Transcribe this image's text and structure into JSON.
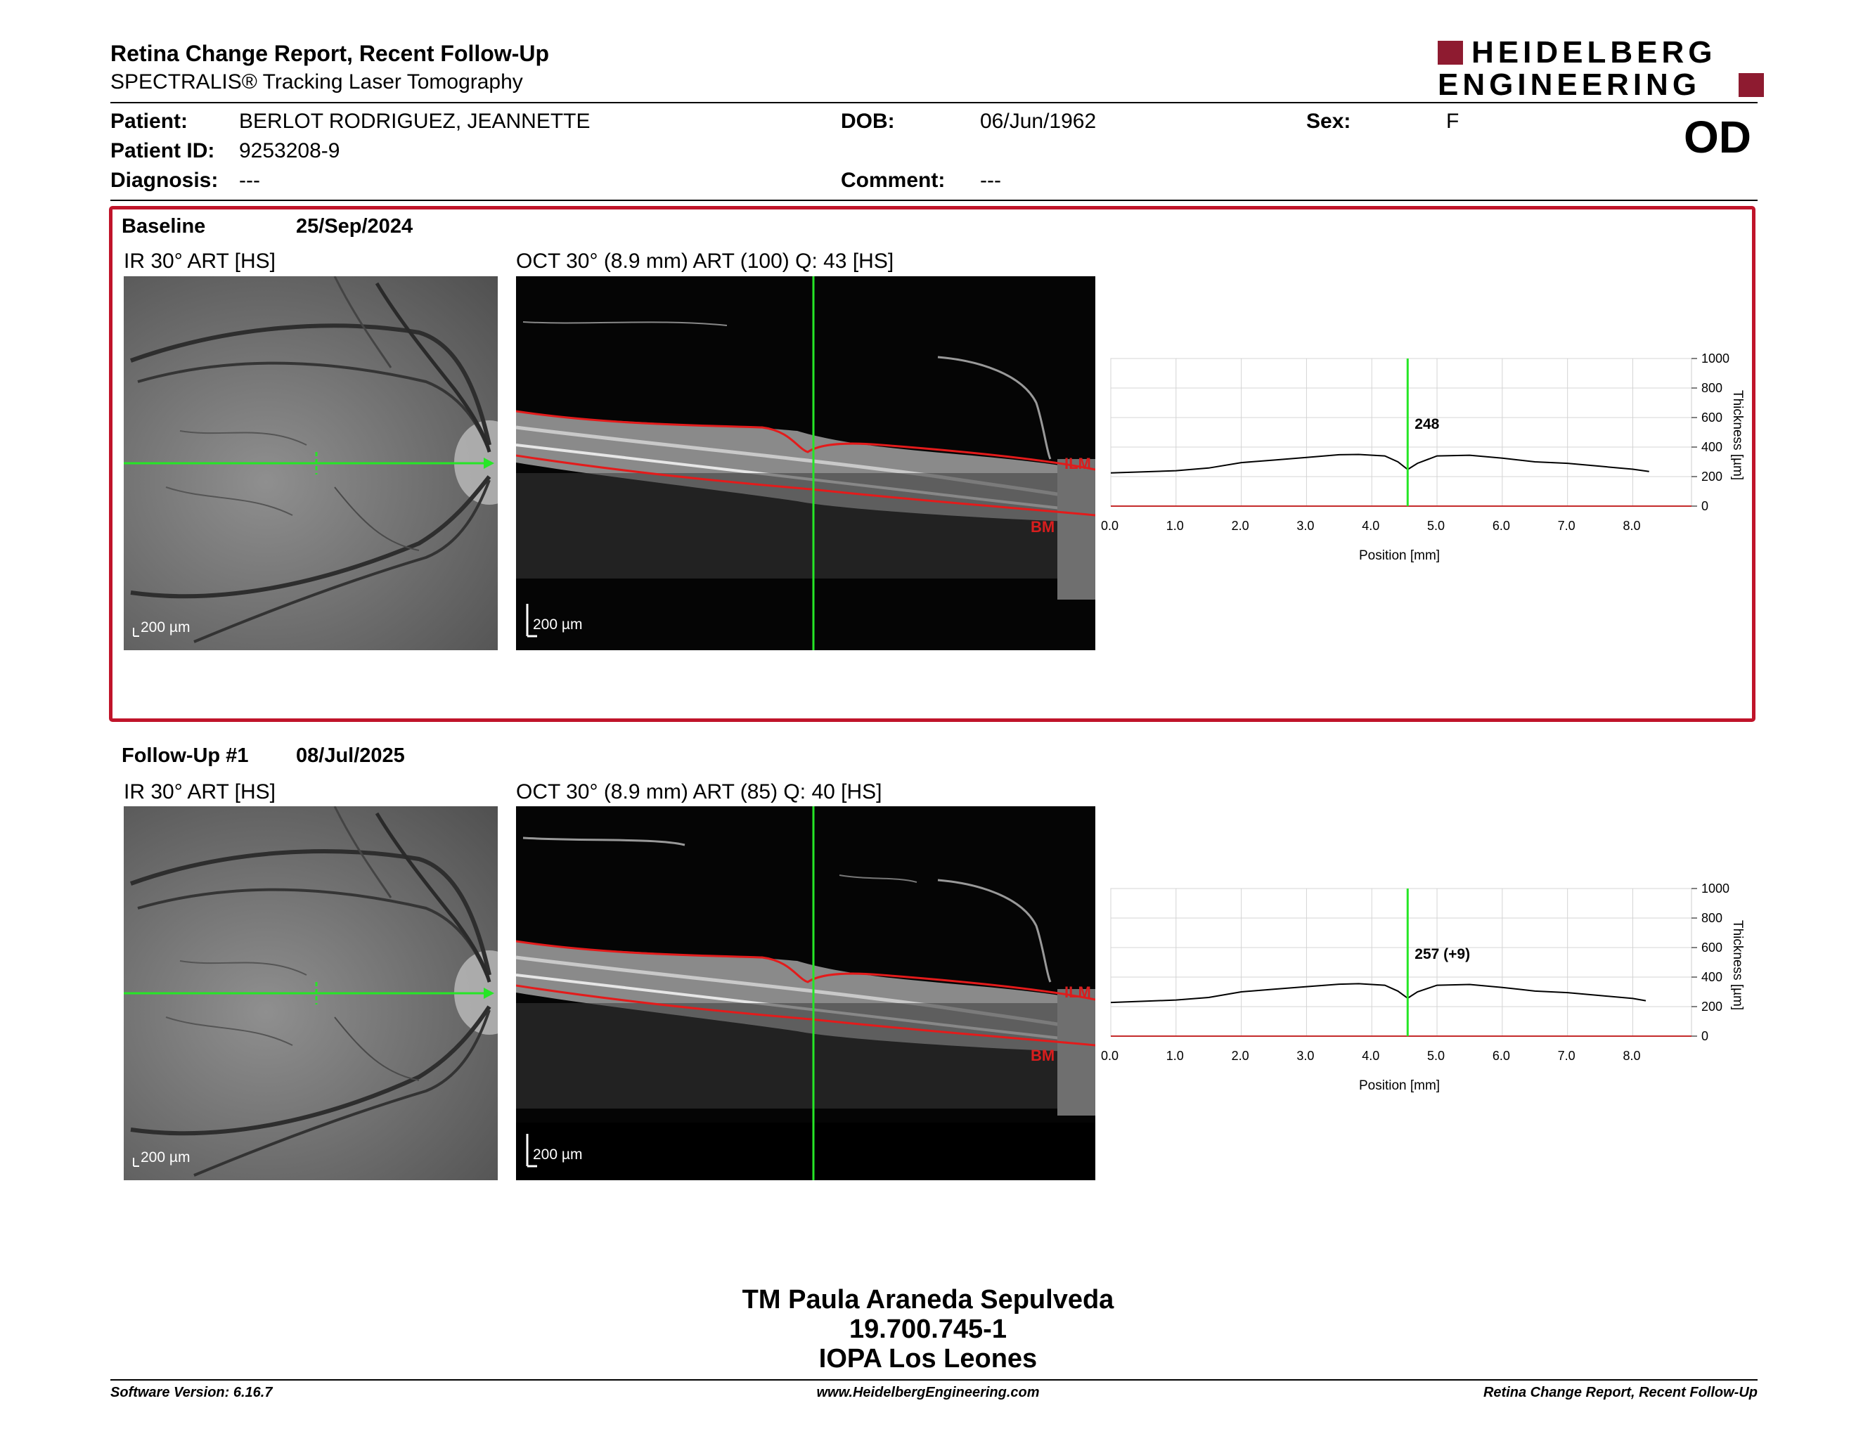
{
  "header": {
    "title": "Retina Change Report, Recent Follow-Up",
    "subtitle": "SPECTRALIS® Tracking Laser Tomography",
    "logo_line1": "HEIDELBERG",
    "logo_line2": "ENGINEERING",
    "logo_color": "#8e1b30"
  },
  "patient": {
    "patient_label": "Patient:",
    "patient_value": "BERLOT RODRIGUEZ, JEANNETTE",
    "id_label": "Patient ID:",
    "id_value": "9253208-9",
    "diagnosis_label": "Diagnosis:",
    "diagnosis_value": "---",
    "dob_label": "DOB:",
    "dob_value": "06/Jun/1962",
    "comment_label": "Comment:",
    "comment_value": "---",
    "sex_label": "Sex:",
    "sex_value": "F",
    "eye": "OD"
  },
  "sections": {
    "baseline": {
      "label": "Baseline",
      "date": "25/Sep/2024",
      "ir_caption": "IR 30° ART [HS]",
      "oct_caption": "OCT 30° (8.9 mm) ART (100) Q: 43 [HS]",
      "ir_scale": "200 µm",
      "oct_scale": "200 µm",
      "ilm_label": "ILM",
      "bm_label": "BM",
      "chart_value_label": "248"
    },
    "followup": {
      "label": "Follow-Up #1",
      "date": "08/Jul/2025",
      "ir_caption": "IR 30° ART [HS]",
      "oct_caption": "OCT 30° (8.9 mm) ART (85) Q: 40 [HS]",
      "ir_scale": "200 µm",
      "oct_scale": "200 µm",
      "ilm_label": "ILM",
      "bm_label": "BM",
      "chart_value_label": "257 (+9)"
    }
  },
  "chart_data": [
    {
      "type": "line",
      "xlabel": "Position [mm]",
      "ylabel": "Thickness [µm]",
      "xlim": [
        0,
        8.9
      ],
      "ylim": [
        0,
        1000
      ],
      "xticks": [
        "0.0",
        "1.0",
        "2.0",
        "3.0",
        "4.0",
        "5.0",
        "6.0",
        "7.0",
        "8.0"
      ],
      "yticks": [
        "0",
        "200",
        "400",
        "600",
        "800",
        "1000"
      ],
      "grid": true,
      "marker_x": 4.55,
      "annotation": "248",
      "x": [
        0.0,
        0.5,
        1.0,
        1.5,
        2.0,
        2.5,
        3.0,
        3.5,
        3.8,
        4.2,
        4.4,
        4.55,
        4.7,
        5.0,
        5.5,
        6.0,
        6.5,
        7.0,
        7.5,
        8.0,
        8.25
      ],
      "y": [
        225,
        232,
        240,
        258,
        295,
        312,
        330,
        348,
        350,
        340,
        300,
        248,
        290,
        340,
        345,
        325,
        300,
        290,
        270,
        250,
        235
      ]
    },
    {
      "type": "line",
      "xlabel": "Position [mm]",
      "ylabel": "Thickness [µm]",
      "xlim": [
        0,
        8.9
      ],
      "ylim": [
        0,
        1000
      ],
      "xticks": [
        "0.0",
        "1.0",
        "2.0",
        "3.0",
        "4.0",
        "5.0",
        "6.0",
        "7.0",
        "8.0"
      ],
      "yticks": [
        "0",
        "200",
        "400",
        "600",
        "800",
        "1000"
      ],
      "grid": true,
      "marker_x": 4.55,
      "annotation": "257 (+9)",
      "x": [
        0.0,
        0.5,
        1.0,
        1.5,
        2.0,
        2.5,
        3.0,
        3.5,
        3.8,
        4.2,
        4.4,
        4.55,
        4.7,
        5.0,
        5.5,
        6.0,
        6.5,
        7.0,
        7.5,
        8.0,
        8.2
      ],
      "y": [
        228,
        236,
        245,
        262,
        300,
        318,
        335,
        352,
        355,
        345,
        305,
        257,
        300,
        345,
        350,
        330,
        305,
        295,
        275,
        255,
        240
      ]
    }
  ],
  "footer": {
    "signer_name": "TM Paula Araneda Sepulveda",
    "signer_id": "19.700.745-1",
    "institution": "IOPA Los Leones",
    "software_version": "Software Version: 6.16.7",
    "website": "www.HeidelbergEngineering.com",
    "report_name": "Retina Change Report, Recent Follow-Up"
  }
}
